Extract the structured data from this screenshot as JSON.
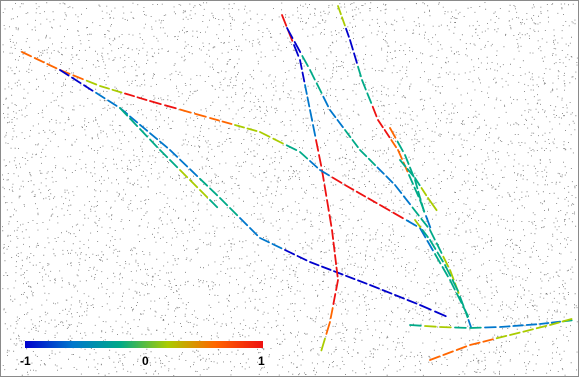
{
  "colorbar": {
    "min_label": "-1",
    "mid_label": "0",
    "max_label": "1",
    "colors": [
      "#0000cc",
      "#0077cc",
      "#00aa88",
      "#aacc00",
      "#ff6600",
      "#ee1111"
    ]
  },
  "noise_color": "#000000",
  "frame_color": "#8a8a8a"
}
